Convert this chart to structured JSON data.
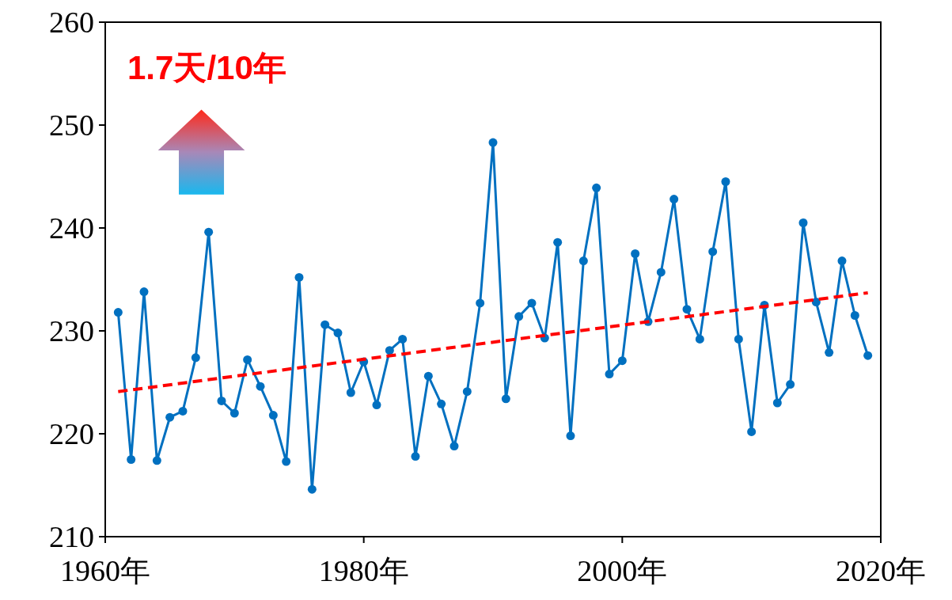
{
  "chart_data": {
    "type": "line",
    "xlim": [
      1960,
      2020
    ],
    "xticks": [
      {
        "value": 1960,
        "label": "1960年"
      },
      {
        "value": 1980,
        "label": "1980年"
      },
      {
        "value": 2000,
        "label": "2000年"
      },
      {
        "value": 2020,
        "label": "2020年"
      }
    ],
    "ylim": [
      210,
      260
    ],
    "yticks": [
      210,
      220,
      230,
      240,
      250,
      260
    ],
    "grid": false,
    "marker": "circle",
    "annotations": [
      "1.7天/10年"
    ],
    "series": [
      {
        "color": "#0070c0",
        "x": [
          1961,
          1962,
          1963,
          1964,
          1965,
          1966,
          1967,
          1968,
          1969,
          1970,
          1971,
          1972,
          1973,
          1974,
          1975,
          1976,
          1977,
          1978,
          1979,
          1980,
          1981,
          1982,
          1983,
          1984,
          1985,
          1986,
          1987,
          1988,
          1989,
          1990,
          1991,
          1992,
          1993,
          1994,
          1995,
          1996,
          1997,
          1998,
          1999,
          2000,
          2001,
          2002,
          2003,
          2004,
          2005,
          2006,
          2007,
          2008,
          2009,
          2010,
          2011,
          2012,
          2013,
          2014,
          2015,
          2016,
          2017,
          2018,
          2019
        ],
        "values": [
          231.8,
          217.5,
          233.8,
          217.4,
          221.6,
          222.2,
          227.4,
          239.6,
          223.2,
          222.0,
          227.2,
          224.6,
          221.8,
          217.3,
          235.2,
          214.6,
          230.6,
          229.8,
          224.0,
          227.0,
          222.8,
          228.1,
          229.2,
          217.8,
          225.6,
          222.9,
          218.8,
          224.1,
          232.7,
          248.3,
          223.4,
          231.4,
          232.7,
          229.3,
          238.6,
          219.8,
          236.8,
          243.9,
          225.8,
          227.1,
          237.5,
          230.9,
          235.7,
          242.8,
          232.1,
          229.2,
          237.7,
          244.5,
          229.2,
          220.2,
          232.5,
          223.0,
          224.8,
          240.5,
          232.8,
          227.9,
          236.8,
          231.5,
          227.6
        ]
      },
      {
        "color": "#ff0000",
        "x": [
          1961,
          2019
        ],
        "values": [
          224.1,
          233.7
        ],
        "marker": "none",
        "line_style": "dashed"
      }
    ]
  }
}
